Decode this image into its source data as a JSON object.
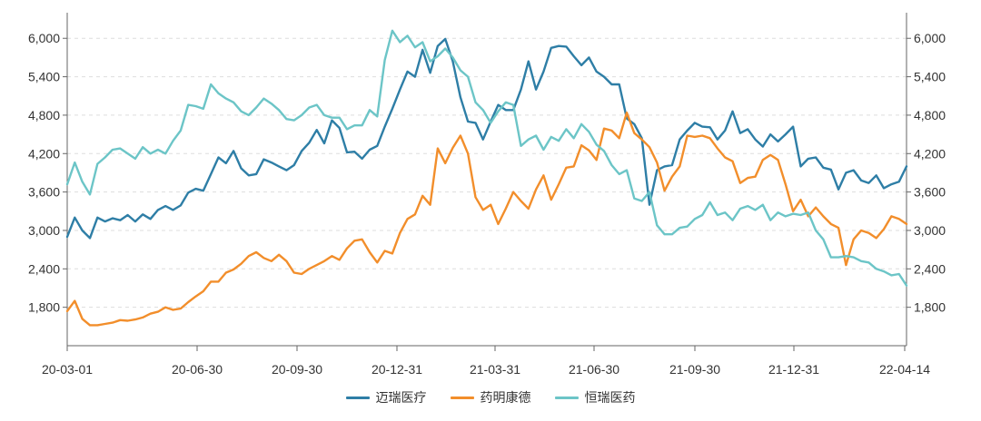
{
  "chart_data": {
    "type": "line",
    "x_tick_labels": [
      "20-03-01",
      "20-06-30",
      "20-09-30",
      "20-12-31",
      "21-03-31",
      "21-06-30",
      "21-09-30",
      "21-12-31",
      "22-04-14"
    ],
    "y_ticks": [
      "1,800",
      "2,400",
      "3,000",
      "3,600",
      "4,200",
      "4,800",
      "5,400",
      "6,000"
    ],
    "y_tick_values": [
      1800,
      2400,
      3000,
      3600,
      4200,
      4800,
      5400,
      6000
    ],
    "ylim": [
      1200,
      6400
    ],
    "grid": "horizontal dashed",
    "legend_position": "bottom",
    "series": [
      {
        "name": "迈瑞医疗",
        "color": "#2e7ea6",
        "values": [
          2900,
          3200,
          3000,
          2880,
          3200,
          3140,
          3190,
          3160,
          3240,
          3140,
          3250,
          3180,
          3320,
          3380,
          3320,
          3390,
          3590,
          3650,
          3620,
          3880,
          4140,
          4050,
          4240,
          3970,
          3860,
          3880,
          4110,
          4060,
          4000,
          3940,
          4020,
          4240,
          4370,
          4570,
          4360,
          4720,
          4600,
          4220,
          4230,
          4120,
          4260,
          4320,
          4620,
          4900,
          5200,
          5480,
          5400,
          5820,
          5460,
          5880,
          5990,
          5640,
          5080,
          4700,
          4680,
          4420,
          4700,
          4960,
          4880,
          4880,
          5200,
          5640,
          5200,
          5480,
          5850,
          5880,
          5870,
          5720,
          5580,
          5700,
          5480,
          5400,
          5280,
          5280,
          4750,
          4660,
          4440,
          3400,
          3940,
          4000,
          4020,
          4420,
          4560,
          4680,
          4620,
          4610,
          4420,
          4560,
          4860,
          4520,
          4580,
          4420,
          4310,
          4500,
          4390,
          4500,
          4620,
          4000,
          4120,
          4140,
          3980,
          3950,
          3640,
          3900,
          3940,
          3780,
          3740,
          3860,
          3660,
          3720,
          3760,
          4000
        ]
      },
      {
        "name": "药明康德",
        "color": "#f28e2b",
        "values": [
          1740,
          1900,
          1620,
          1520,
          1520,
          1540,
          1560,
          1600,
          1590,
          1610,
          1640,
          1700,
          1730,
          1800,
          1760,
          1780,
          1880,
          1970,
          2050,
          2200,
          2200,
          2340,
          2390,
          2480,
          2600,
          2660,
          2570,
          2520,
          2620,
          2520,
          2340,
          2320,
          2400,
          2460,
          2520,
          2600,
          2540,
          2720,
          2840,
          2860,
          2660,
          2500,
          2680,
          2640,
          2960,
          3180,
          3250,
          3540,
          3400,
          4280,
          4050,
          4290,
          4480,
          4200,
          3520,
          3320,
          3400,
          3100,
          3340,
          3600,
          3460,
          3340,
          3640,
          3860,
          3480,
          3720,
          3980,
          4000,
          4330,
          4250,
          4100,
          4590,
          4560,
          4440,
          4840,
          4520,
          4420,
          4300,
          4060,
          3620,
          3840,
          4000,
          4480,
          4460,
          4480,
          4440,
          4280,
          4140,
          4080,
          3740,
          3820,
          3840,
          4100,
          4180,
          4100,
          3720,
          3300,
          3480,
          3220,
          3360,
          3220,
          3100,
          3040,
          2460,
          2860,
          3000,
          2960,
          2880,
          3020,
          3220,
          3180,
          3100
        ]
      },
      {
        "name": "恒瑞医药",
        "color": "#6cc5c7",
        "values": [
          3720,
          4060,
          3760,
          3560,
          4040,
          4140,
          4260,
          4280,
          4200,
          4120,
          4300,
          4200,
          4260,
          4200,
          4400,
          4560,
          4960,
          4940,
          4900,
          5280,
          5140,
          5060,
          5000,
          4860,
          4800,
          4920,
          5060,
          4980,
          4880,
          4740,
          4720,
          4800,
          4920,
          4960,
          4800,
          4760,
          4760,
          4580,
          4640,
          4640,
          4880,
          4780,
          5660,
          6120,
          5940,
          6040,
          5860,
          5940,
          5640,
          5720,
          5840,
          5700,
          5500,
          5400,
          5000,
          4880,
          4680,
          4860,
          5000,
          4960,
          4320,
          4420,
          4480,
          4260,
          4460,
          4400,
          4580,
          4440,
          4660,
          4540,
          4340,
          4240,
          4020,
          3880,
          3940,
          3500,
          3460,
          3600,
          3080,
          2940,
          2940,
          3040,
          3060,
          3180,
          3240,
          3440,
          3240,
          3280,
          3160,
          3340,
          3380,
          3320,
          3400,
          3160,
          3280,
          3220,
          3260,
          3240,
          3280,
          3000,
          2860,
          2580,
          2580,
          2600,
          2580,
          2520,
          2500,
          2400,
          2360,
          2300,
          2320,
          2140
        ]
      }
    ]
  }
}
